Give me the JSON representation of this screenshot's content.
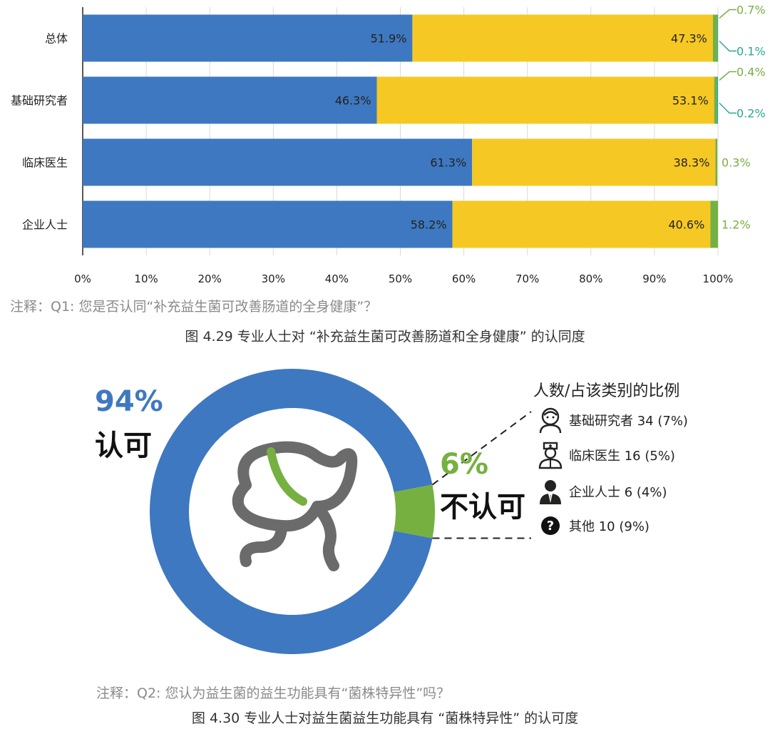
{
  "chart_data": [
    {
      "type": "bar",
      "orientation": "horizontal",
      "stacked": true,
      "categories": [
        "总体",
        "基础研究者",
        "临床医生",
        "企业人士"
      ],
      "series": [
        {
          "values": [
            51.9,
            46.3,
            61.3,
            58.2
          ],
          "color": "#3E78C0"
        },
        {
          "values": [
            47.3,
            53.1,
            38.3,
            40.6
          ],
          "color": "#F6C823"
        },
        {
          "values": [
            0.7,
            0.4,
            0.3,
            1.2
          ],
          "color": "#76B041"
        },
        {
          "values": [
            0.1,
            0.2,
            0,
            0
          ],
          "color": "#2AA59A"
        }
      ],
      "data_labels": [
        [
          "51.9%",
          "47.3%",
          "0.7%",
          "0.1%"
        ],
        [
          "46.3%",
          "53.1%",
          "0.4%",
          "0.2%"
        ],
        [
          "61.3%",
          "38.3%",
          "0.3%",
          ""
        ],
        [
          "58.2%",
          "40.6%",
          "1.2%",
          ""
        ]
      ],
      "xlim": [
        0,
        100
      ],
      "xticks": [
        "0%",
        "10%",
        "20%",
        "30%",
        "40%",
        "50%",
        "60%",
        "70%",
        "80%",
        "90%",
        "100%"
      ],
      "grid": true,
      "note": "注释：Q1: 您是否认同“补充益生菌可改善肠道的全身健康”？",
      "caption": "图 4.29 专业人士对 “补充益生菌可改善肠道和全身健康” 的认同度"
    },
    {
      "type": "pie",
      "donut": true,
      "slices": [
        {
          "label": "认可",
          "value": 94,
          "display": "94%",
          "color": "#3E78C0"
        },
        {
          "label": "不认可",
          "value": 6,
          "display": "6%",
          "color": "#76B041"
        }
      ],
      "breakdown_title": "人数/占该类别的比例",
      "breakdown": [
        {
          "icon": "researcher-icon",
          "text": "基础研究者 34 (7%)"
        },
        {
          "icon": "doctor-icon",
          "text": "临床医生 16 (5%)"
        },
        {
          "icon": "business-person-icon",
          "text": "企业人士 6 (4%)"
        },
        {
          "icon": "question-icon",
          "text": "其他 10 (9%)"
        }
      ],
      "center_icon": "bacteria-icon",
      "note": "注释：Q2: 您认为益生菌的益生功能具有“菌株特异性”吗？",
      "caption": "图 4.30 专业人士对益生菌益生功能具有 “菌株特异性” 的认可度"
    }
  ]
}
